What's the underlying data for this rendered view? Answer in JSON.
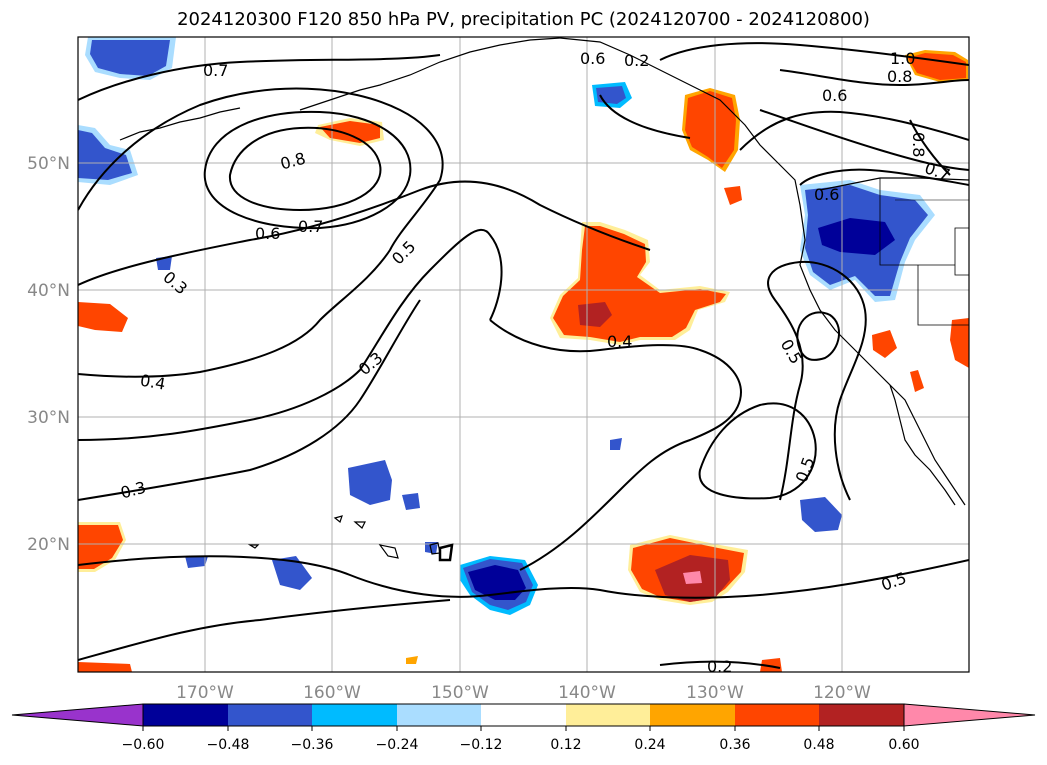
{
  "title": "2024120300 F120 850 hPa PV, precipitation PC (2024120700 - 2024120800)",
  "map": {
    "lon_labels": [
      "170°W",
      "160°W",
      "150°W",
      "140°W",
      "130°W",
      "120°W"
    ],
    "lat_labels": [
      "50°N",
      "40°N",
      "30°N",
      "20°N"
    ],
    "contour_labels": [
      "0.7",
      "0.8",
      "0.7",
      "0.6",
      "0.5",
      "0.3",
      "0.4",
      "0.3",
      "0.3",
      "0.5",
      "0.4",
      "0.5",
      "0.5",
      "0.2",
      "0.2",
      "1.0",
      "0.8",
      "0.6",
      "0.8",
      "0.7",
      "0.6",
      "0.6"
    ]
  },
  "colorbar": {
    "ticks": [
      "−0.60",
      "−0.48",
      "−0.36",
      "−0.24",
      "−0.12",
      "0.12",
      "0.24",
      "0.36",
      "0.48",
      "0.60"
    ],
    "colors": {
      "under": "#9933cc",
      "bins": [
        "#000099",
        "#3355cc",
        "#00bbff",
        "#aaddff",
        "#ffffff",
        "#ffee99",
        "#ffa500",
        "#ff4500",
        "#b22222",
        "#ff88aa"
      ],
      "over": "#ff88aa"
    }
  }
}
